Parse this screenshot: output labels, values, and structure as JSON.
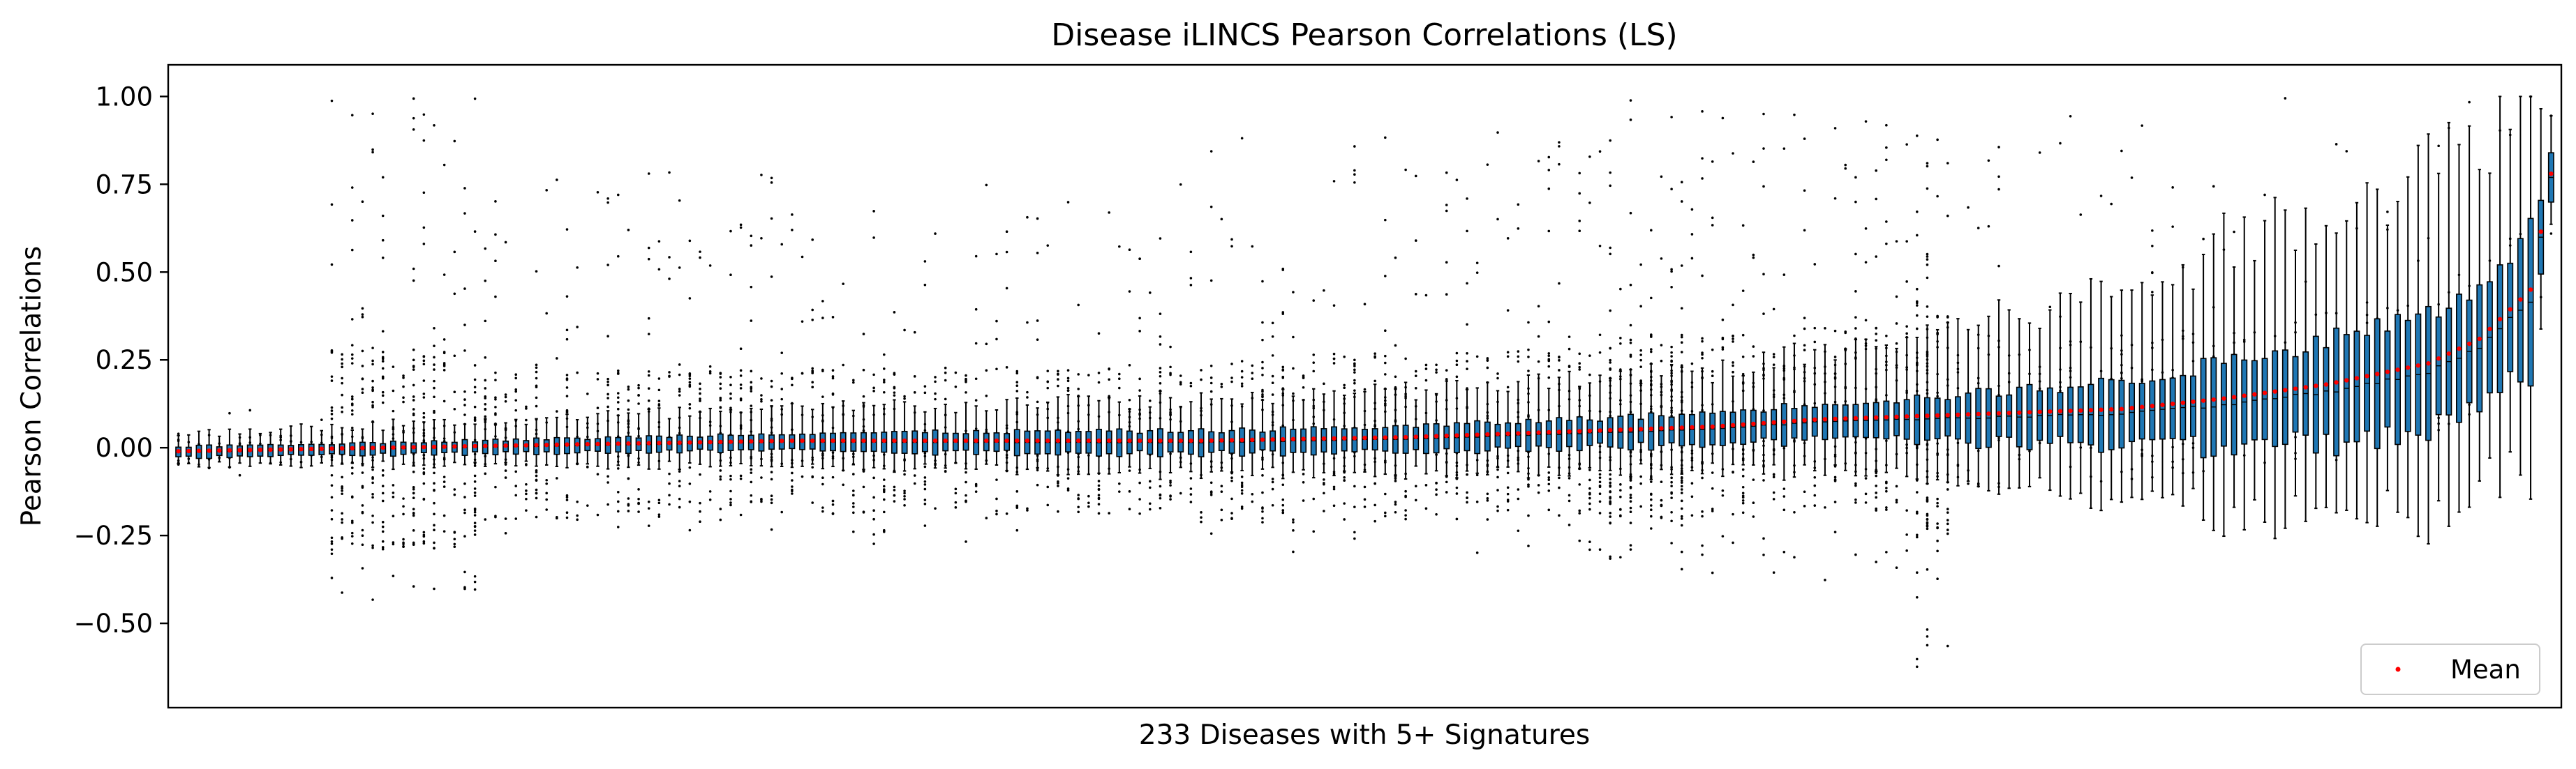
{
  "chart_data": {
    "type": "box",
    "title": "Disease iLINCS Pearson Correlations (LS)",
    "xlabel": "233 Diseases with 5+ Signatures",
    "ylabel": "Pearson Correlations",
    "ylim": [
      -0.74,
      1.09
    ],
    "yticks": [
      -0.5,
      -0.25,
      0.0,
      0.25,
      0.5,
      0.75,
      1.0
    ],
    "ytick_labels": [
      "−0.50",
      "−0.25",
      "0.00",
      "0.25",
      "0.50",
      "0.75",
      "1.00"
    ],
    "n_categories": 233,
    "x_tick_labels_shown": false,
    "grid": false,
    "box_color": "#1f77b4",
    "mean_color": "#ff0000",
    "legend": {
      "position": "lower-right",
      "entries": [
        "Mean"
      ]
    },
    "mean_profile": {
      "index": [
        0,
        20,
        40,
        60,
        80,
        100,
        120,
        140,
        150,
        160,
        170,
        180,
        190,
        200,
        210,
        220,
        225,
        230,
        232
      ],
      "mean": [
        -0.01,
        0.0,
        0.01,
        0.02,
        0.02,
        0.02,
        0.03,
        0.05,
        0.06,
        0.08,
        0.09,
        0.1,
        0.11,
        0.14,
        0.18,
        0.24,
        0.31,
        0.45,
        0.78
      ]
    },
    "iqr_halfwidth_profile": {
      "index": [
        0,
        40,
        80,
        120,
        150,
        170,
        190,
        200,
        210,
        220,
        230,
        232
      ],
      "halfwidth": [
        0.015,
        0.02,
        0.03,
        0.035,
        0.045,
        0.06,
        0.09,
        0.12,
        0.15,
        0.17,
        0.2,
        0.06
      ]
    },
    "whisker_halfwidth_profile": {
      "index": [
        0,
        40,
        80,
        120,
        150,
        170,
        190,
        200,
        210,
        220,
        230,
        232
      ],
      "halfwidth": [
        0.04,
        0.06,
        0.08,
        0.1,
        0.12,
        0.18,
        0.26,
        0.33,
        0.38,
        0.42,
        0.45,
        0.1
      ]
    },
    "outlier_bands": [
      {
        "range": [
          0,
          19
        ],
        "low": -0.1,
        "high": 0.15,
        "count": 6
      },
      {
        "range": [
          15,
          30
        ],
        "low": -0.45,
        "high": 1.0,
        "count": 30
      },
      {
        "range": [
          30,
          60
        ],
        "low": -0.25,
        "high": 0.8,
        "count": 18
      },
      {
        "range": [
          60,
          100
        ],
        "low": -0.3,
        "high": 0.75,
        "count": 16
      },
      {
        "range": [
          100,
          140
        ],
        "low": -0.3,
        "high": 0.9,
        "count": 20
      },
      {
        "range": [
          140,
          150
        ],
        "low": -0.35,
        "high": 1.0,
        "count": 40
      },
      {
        "range": [
          150,
          170
        ],
        "low": -0.38,
        "high": 0.95,
        "count": 22
      },
      {
        "range": [
          170,
          174
        ],
        "low": -0.64,
        "high": 1.0,
        "count": 60
      },
      {
        "range": [
          174,
          200
        ],
        "low": -0.1,
        "high": 0.95,
        "count": 10
      },
      {
        "range": [
          200,
          233
        ],
        "low": -0.05,
        "high": 1.0,
        "count": 6
      }
    ]
  }
}
